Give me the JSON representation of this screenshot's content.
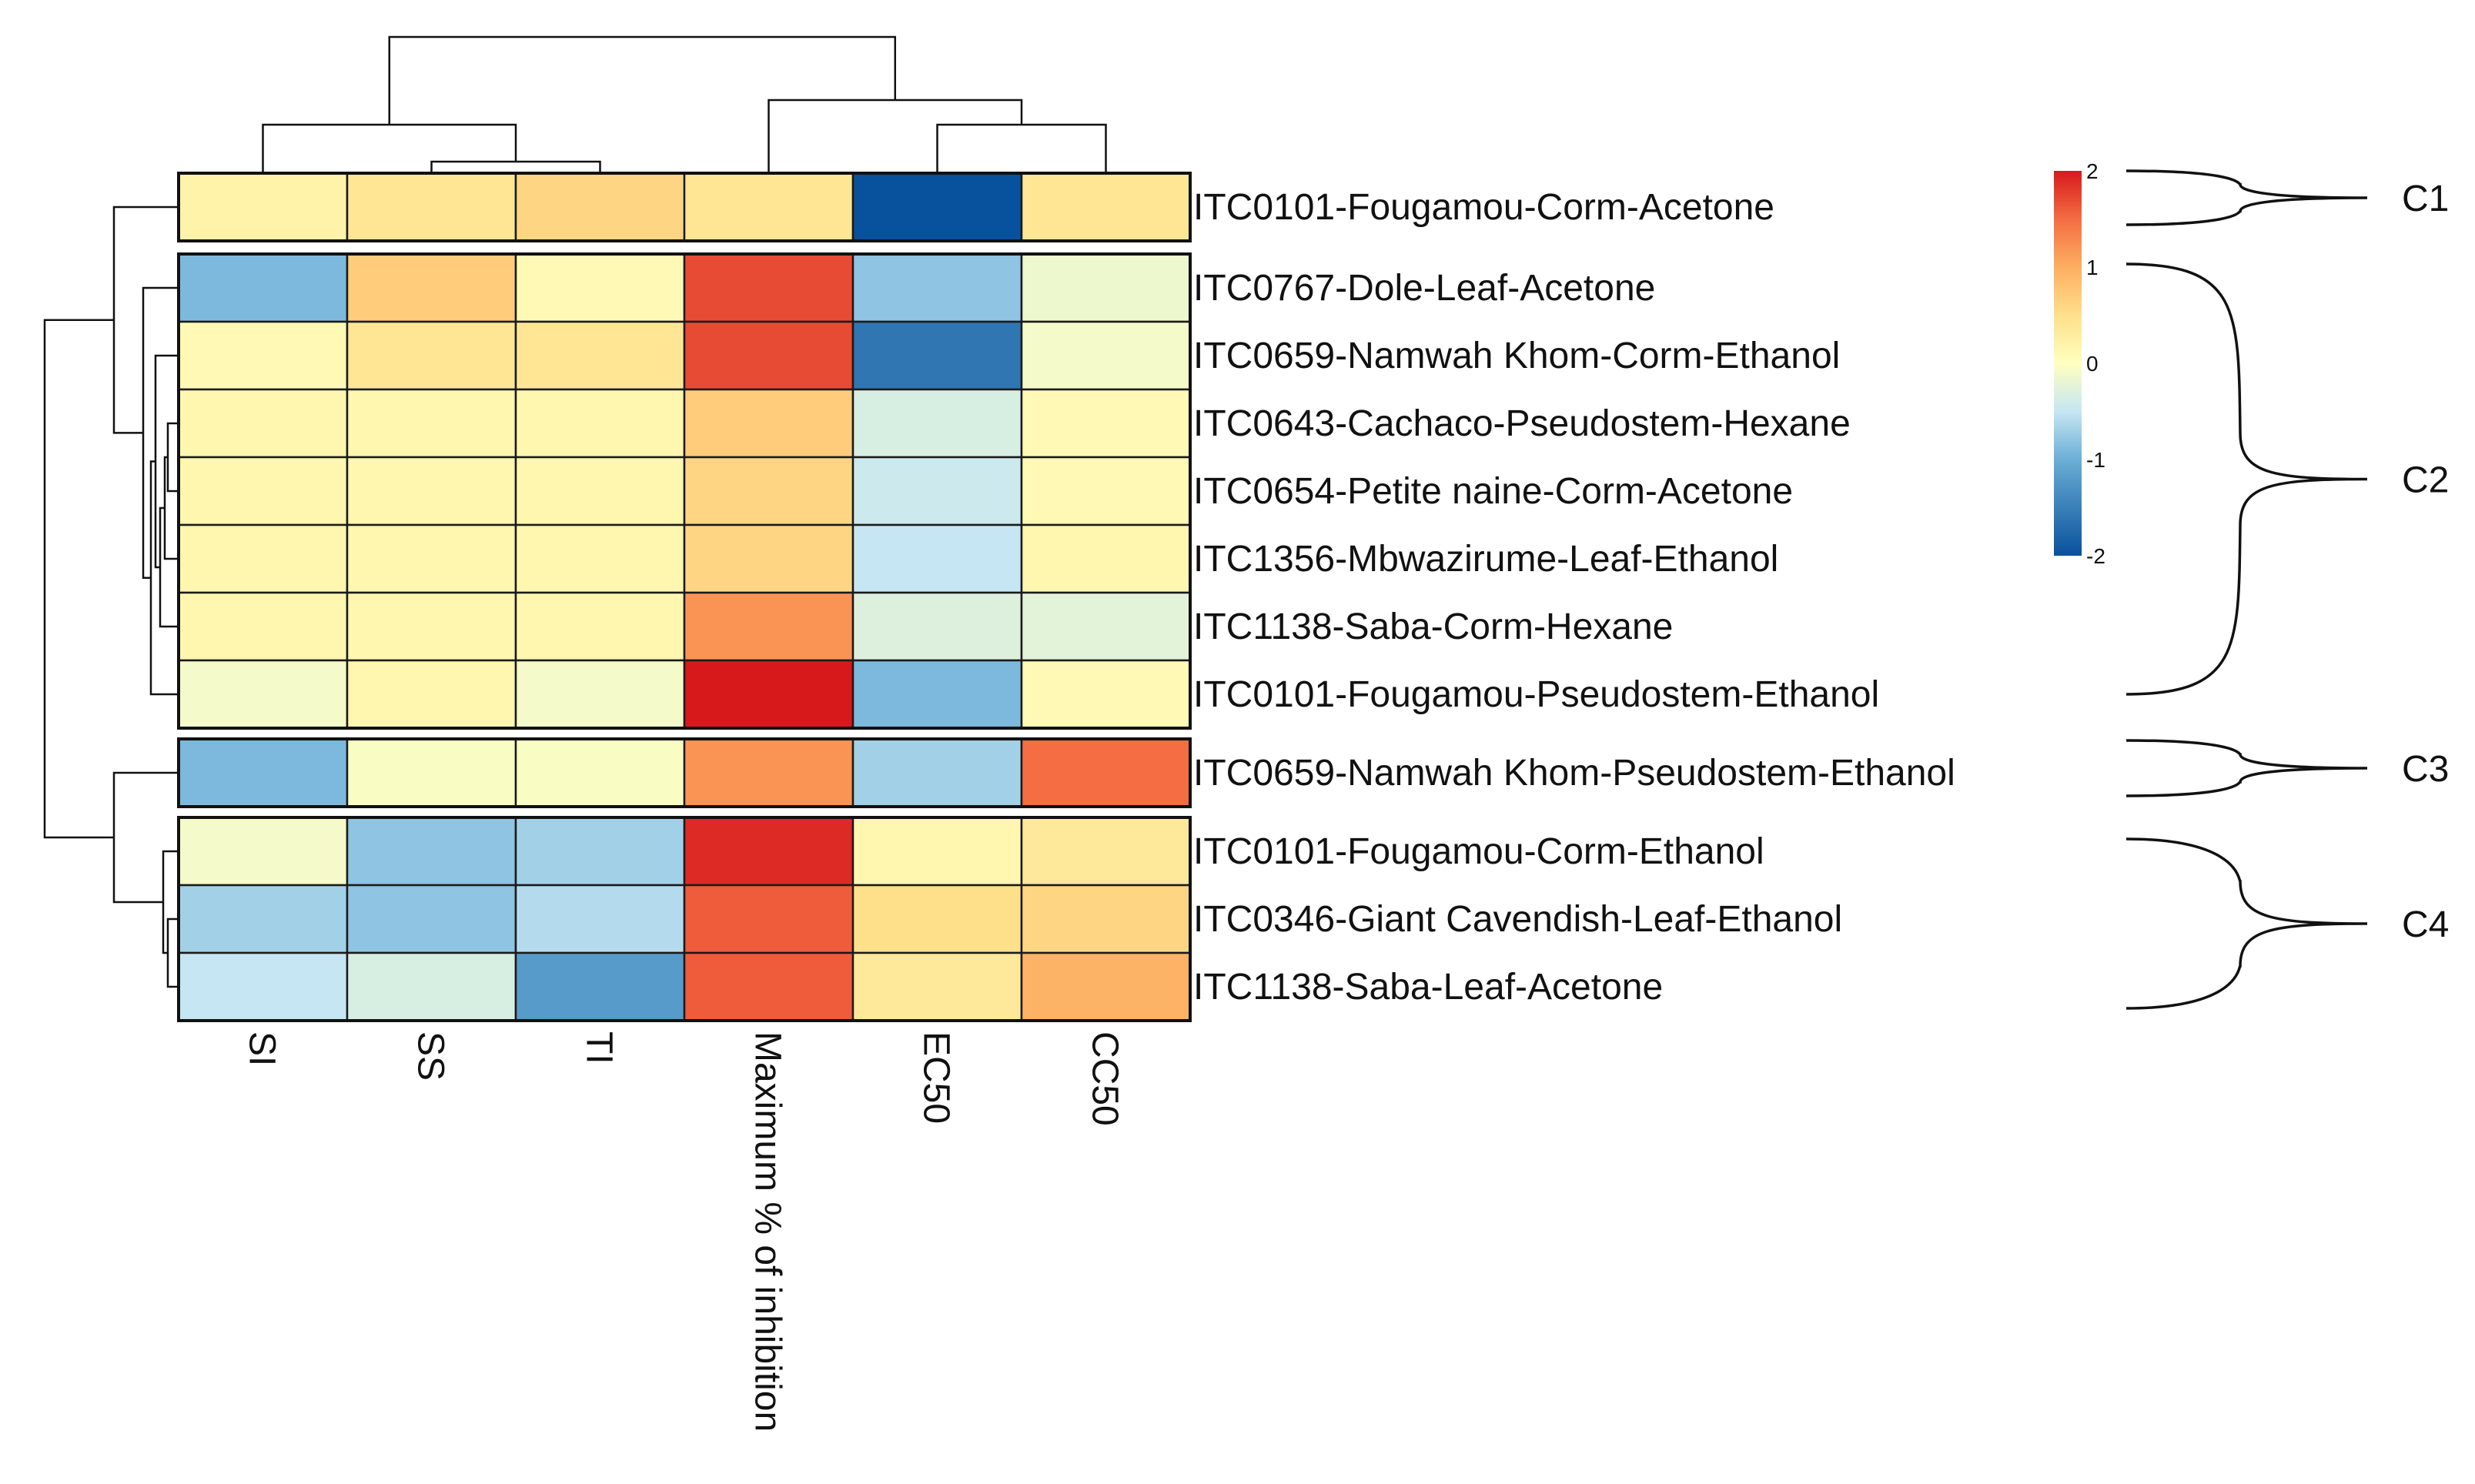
{
  "chart_data": {
    "type": "heatmap",
    "title": "",
    "columns": [
      "SI",
      "SS",
      "TI",
      "Maximum % of inhibition",
      "EC50",
      "CC50"
    ],
    "rows": [
      "ITC0101-Fougamou-Corm-Acetone",
      "ITC0767-Dole-Leaf-Acetone",
      "ITC0659-Namwah Khom-Corm-Ethanol",
      "ITC0643-Cachaco-Pseudostem-Hexane",
      "ITC0654-Petite naine-Corm-Acetone",
      "ITC1356-Mbwazirume-Leaf-Ethanol",
      "ITC1138-Saba-Corm-Hexane",
      "ITC0101-Fougamou-Pseudostem-Ethanol",
      "ITC0659-Namwah Khom-Pseudostem-Ethanol",
      "ITC0101-Fougamou-Corm-Ethanol",
      "ITC0346-Giant Cavendish-Leaf-Ethanol",
      "ITC1138-Saba-Leaf-Acetone"
    ],
    "values": [
      [
        0.2,
        0.4,
        0.6,
        0.4,
        -2.0,
        0.4
      ],
      [
        -0.9,
        0.7,
        0.1,
        1.7,
        -0.8,
        -0.15
      ],
      [
        0.1,
        0.4,
        0.4,
        1.7,
        -1.6,
        -0.1
      ],
      [
        0.15,
        0.15,
        0.15,
        0.7,
        -0.35,
        0.1
      ],
      [
        0.15,
        0.15,
        0.15,
        0.6,
        -0.45,
        0.1
      ],
      [
        0.15,
        0.15,
        0.15,
        0.6,
        -0.5,
        0.15
      ],
      [
        0.15,
        0.15,
        0.15,
        1.2,
        -0.3,
        -0.25
      ],
      [
        -0.1,
        0.15,
        -0.1,
        2.0,
        -0.9,
        0.1
      ],
      [
        -0.9,
        -0.05,
        -0.05,
        1.2,
        -0.7,
        1.5
      ],
      [
        -0.1,
        -0.8,
        -0.7,
        1.9,
        0.15,
        0.35
      ],
      [
        -0.7,
        -0.8,
        -0.6,
        1.6,
        0.5,
        0.6
      ],
      [
        -0.5,
        -0.35,
        -1.2,
        1.6,
        0.35,
        0.95
      ]
    ],
    "row_groups": [
      [
        0
      ],
      [
        1,
        2,
        3,
        4,
        5,
        6,
        7
      ],
      [
        8
      ],
      [
        9,
        10,
        11
      ]
    ],
    "clusters": [
      "C1",
      "C2",
      "C3",
      "C4"
    ],
    "colorbar": {
      "range": [
        -2,
        2
      ],
      "ticks": [
        2,
        1,
        0,
        -1,
        -2
      ],
      "low_color": "#08519c",
      "mid_color": "#ffffbf",
      "high_color": "#d7191c"
    }
  }
}
